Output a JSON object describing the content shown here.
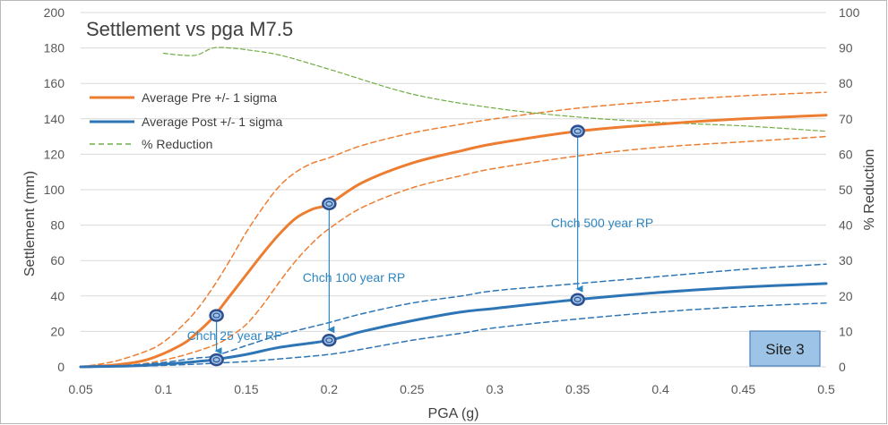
{
  "chart_data": {
    "type": "line",
    "title": "Settlement vs pga M7.5",
    "xlabel": "PGA (g)",
    "ylabel": "Settlement (mm)",
    "y2label": "% Reduction",
    "xlim": [
      0.05,
      0.5
    ],
    "ylim": [
      0,
      200
    ],
    "y2lim": [
      0,
      100
    ],
    "grid": true,
    "legend_position": "top-left",
    "x_ticks": [
      "0.05",
      "0.1",
      "0.15",
      "0.2",
      "0.25",
      "0.3",
      "0.35",
      "0.4",
      "0.45",
      "0.5"
    ],
    "y_ticks": [
      "0",
      "20",
      "40",
      "60",
      "80",
      "100",
      "120",
      "140",
      "160",
      "180",
      "200"
    ],
    "y2_ticks": [
      "0",
      "10",
      "20",
      "30",
      "40",
      "50",
      "60",
      "70",
      "80",
      "90",
      "100"
    ],
    "legend": [
      {
        "label": "Average Pre +/- 1 sigma",
        "color": "#ed7d31",
        "style": "solid"
      },
      {
        "label": "Average Post +/- 1 sigma",
        "color": "#2e75b6",
        "style": "solid"
      },
      {
        "label": "% Reduction",
        "color": "#70ad47",
        "style": "dashed"
      }
    ],
    "series": [
      {
        "name": "Average Pre",
        "axis": "left",
        "color": "#ed7d31",
        "style": "solid",
        "width": 3,
        "x": [
          0.05,
          0.07,
          0.09,
          0.11,
          0.12,
          0.13,
          0.14,
          0.15,
          0.16,
          0.17,
          0.18,
          0.19,
          0.2,
          0.22,
          0.25,
          0.28,
          0.3,
          0.35,
          0.4,
          0.45,
          0.5
        ],
        "values": [
          0,
          1,
          4,
          12,
          19,
          28,
          40,
          52,
          64,
          75,
          84,
          89,
          92,
          104,
          115,
          122,
          126,
          133,
          137,
          140,
          142
        ]
      },
      {
        "name": "Pre +1 sigma",
        "axis": "left",
        "color": "#ed7d31",
        "style": "dashed",
        "width": 1.5,
        "x": [
          0.05,
          0.07,
          0.09,
          0.1,
          0.11,
          0.12,
          0.13,
          0.14,
          0.15,
          0.16,
          0.17,
          0.18,
          0.19,
          0.2,
          0.22,
          0.25,
          0.28,
          0.3,
          0.35,
          0.4,
          0.45,
          0.5
        ],
        "values": [
          0,
          3,
          9,
          14,
          22,
          32,
          45,
          60,
          76,
          90,
          102,
          110,
          115,
          118,
          125,
          132,
          137,
          140,
          146,
          150,
          153,
          155
        ]
      },
      {
        "name": "Pre -1 sigma",
        "axis": "left",
        "color": "#ed7d31",
        "style": "dashed",
        "width": 1.5,
        "x": [
          0.05,
          0.07,
          0.09,
          0.11,
          0.13,
          0.14,
          0.15,
          0.16,
          0.17,
          0.18,
          0.19,
          0.2,
          0.22,
          0.25,
          0.28,
          0.3,
          0.35,
          0.4,
          0.45,
          0.5
        ],
        "values": [
          0,
          0.5,
          2,
          6,
          12,
          17,
          24,
          35,
          48,
          60,
          70,
          78,
          90,
          101,
          108,
          112,
          119,
          124,
          127,
          130
        ]
      },
      {
        "name": "Average Post",
        "axis": "left",
        "color": "#2e75b6",
        "style": "solid",
        "width": 3,
        "x": [
          0.05,
          0.08,
          0.1,
          0.12,
          0.13,
          0.15,
          0.17,
          0.2,
          0.22,
          0.25,
          0.28,
          0.3,
          0.35,
          0.4,
          0.45,
          0.5
        ],
        "values": [
          0,
          0.5,
          1.5,
          3,
          4,
          7,
          11,
          15,
          20,
          26,
          31,
          33,
          38,
          42,
          45,
          47
        ]
      },
      {
        "name": "Post +1 sigma",
        "axis": "left",
        "color": "#2e75b6",
        "style": "dashed",
        "width": 1.5,
        "x": [
          0.05,
          0.08,
          0.1,
          0.12,
          0.13,
          0.15,
          0.17,
          0.2,
          0.22,
          0.25,
          0.28,
          0.3,
          0.35,
          0.4,
          0.45,
          0.5
        ],
        "values": [
          0,
          1,
          2.5,
          5,
          6,
          12,
          18,
          25,
          30,
          36,
          40,
          43,
          47,
          51,
          55,
          58
        ]
      },
      {
        "name": "Post -1 sigma",
        "axis": "left",
        "color": "#2e75b6",
        "style": "dashed",
        "width": 1.5,
        "x": [
          0.05,
          0.08,
          0.1,
          0.12,
          0.13,
          0.15,
          0.17,
          0.2,
          0.22,
          0.25,
          0.28,
          0.3,
          0.35,
          0.4,
          0.45,
          0.5
        ],
        "values": [
          0,
          0.3,
          0.8,
          1.5,
          2,
          3,
          4.5,
          7,
          10,
          15,
          19,
          22,
          27,
          31,
          34,
          36
        ]
      },
      {
        "name": "% Reduction",
        "axis": "right",
        "color": "#70ad47",
        "style": "dashed",
        "width": 1.2,
        "x": [
          0.1,
          0.11,
          0.12,
          0.13,
          0.14,
          0.15,
          0.17,
          0.2,
          0.25,
          0.3,
          0.35,
          0.4,
          0.45,
          0.5
        ],
        "values": [
          88.5,
          88,
          88,
          90,
          90,
          89.5,
          88,
          84,
          77,
          73,
          70.5,
          69,
          68,
          66.5
        ]
      }
    ],
    "markers": [
      {
        "x": 0.132,
        "y": 29
      },
      {
        "x": 0.132,
        "y": 4
      },
      {
        "x": 0.2,
        "y": 92
      },
      {
        "x": 0.2,
        "y": 15
      },
      {
        "x": 0.35,
        "y": 133
      },
      {
        "x": 0.35,
        "y": 38
      }
    ],
    "annotations": [
      {
        "text": "Chch 25 year RP",
        "x": 0.132,
        "from": 29,
        "to": 6
      },
      {
        "text": "Chch 100 year RP",
        "x": 0.2,
        "from": 92,
        "to": 18
      },
      {
        "text": "Chch 500 year RP",
        "x": 0.35,
        "from": 133,
        "to": 41
      }
    ],
    "site_label": "Site 3"
  }
}
